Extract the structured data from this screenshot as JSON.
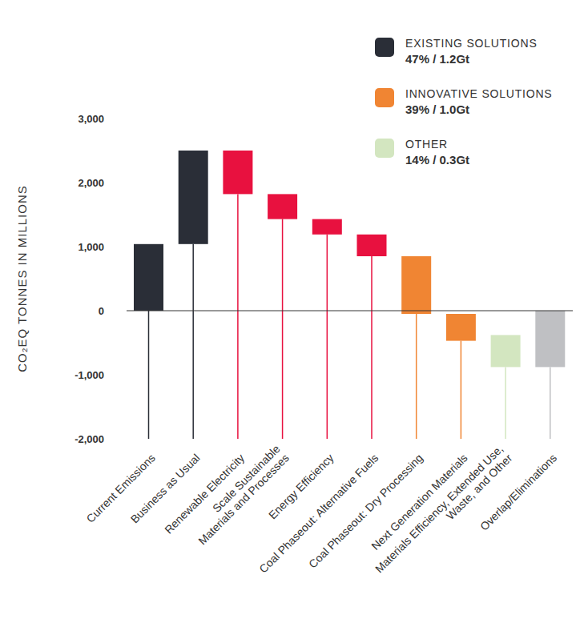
{
  "chart_data": {
    "type": "waterfall",
    "y_label": "CO₂EQ TONNES IN MILLIONS",
    "categories": [
      "Current Emissions",
      "Business as Usual",
      "Renewable Electricity",
      "Scale Sustainable\nMaterials and Processes",
      "Energy Efficiency",
      "Coal Phaseout: Alternative Fuels",
      "Coal Phaseout: Dry Processing",
      "Next Generation Materials",
      "Materials Efficiency, Extended Use,\nWaste, and Other",
      "Overlap/Eliminations"
    ],
    "values": [
      [
        0,
        1040
      ],
      [
        1040,
        2500
      ],
      [
        2500,
        1820
      ],
      [
        1820,
        1430
      ],
      [
        1430,
        1190
      ],
      [
        1190,
        850
      ],
      [
        850,
        -50
      ],
      [
        -50,
        -470
      ],
      [
        -380,
        -880
      ],
      [
        0,
        -880
      ]
    ],
    "colors": [
      "#2a2e37",
      "#2a2e37",
      "#e8113f",
      "#e8113f",
      "#e8113f",
      "#e8113f",
      "#f08533",
      "#f08533",
      "#d3e6c0",
      "#bfc0c3"
    ],
    "ylim": [
      -2000,
      3000
    ],
    "yticks": [
      {
        "value": -2000,
        "label": "-2,000"
      },
      {
        "value": -1000,
        "label": "-1,000"
      },
      0,
      {
        "value": 1000,
        "label": "1,000"
      },
      {
        "value": 2000,
        "label": "2,000"
      },
      {
        "value": 3000,
        "label": "3,000"
      }
    ],
    "grid": false,
    "legend": "upper right",
    "groups": [
      {
        "name": "EXISTING SOLUTIONS",
        "color": "#2a2e37",
        "value_label": "47% / 1.2Gt"
      },
      {
        "name": "INNOVATIVE SOLUTIONS",
        "color": "#f08533",
        "value_label": "39% / 1.0Gt"
      },
      {
        "name": "OTHER",
        "color": "#d3e6c0",
        "value_label": "14% / 0.3Gt"
      }
    ]
  }
}
